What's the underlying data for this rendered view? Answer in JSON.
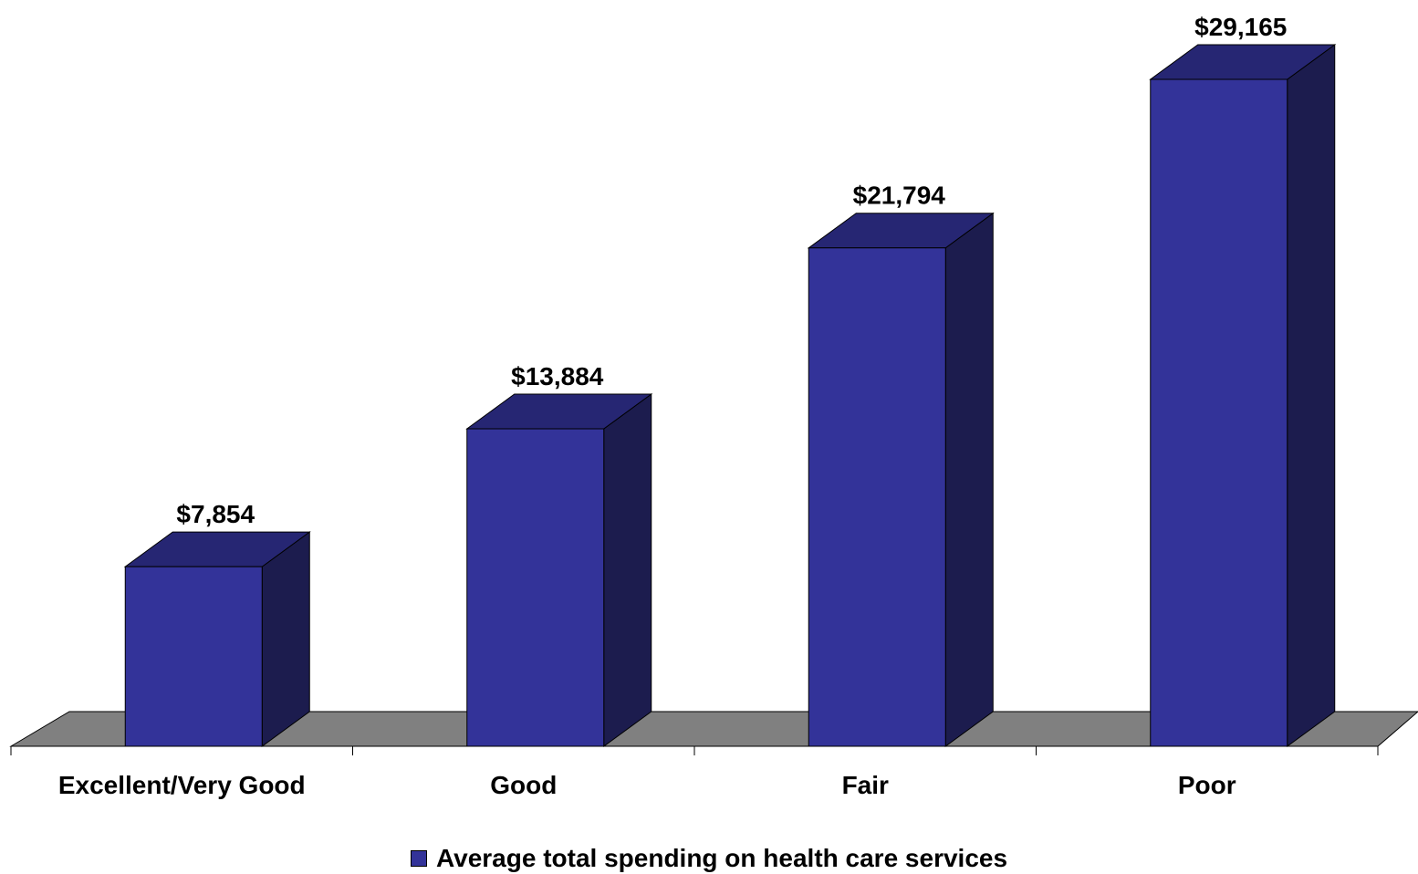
{
  "chart_data": {
    "type": "bar",
    "categories": [
      "Excellent/Very Good",
      "Good",
      "Fair",
      "Poor"
    ],
    "series": [
      {
        "name": "Average total spending on health care services",
        "values": [
          7854,
          13884,
          21794,
          29165
        ],
        "labels": [
          "$7,854",
          "$13,884",
          "$21,794",
          "$29,165"
        ]
      }
    ],
    "ylim": [
      0,
      30000
    ],
    "grid": false,
    "legend_position": "bottom",
    "style": "3d"
  },
  "colors": {
    "bar_front": "#333399",
    "bar_top": "#262673",
    "bar_side": "#1c1c4e",
    "floor": "#808080"
  }
}
